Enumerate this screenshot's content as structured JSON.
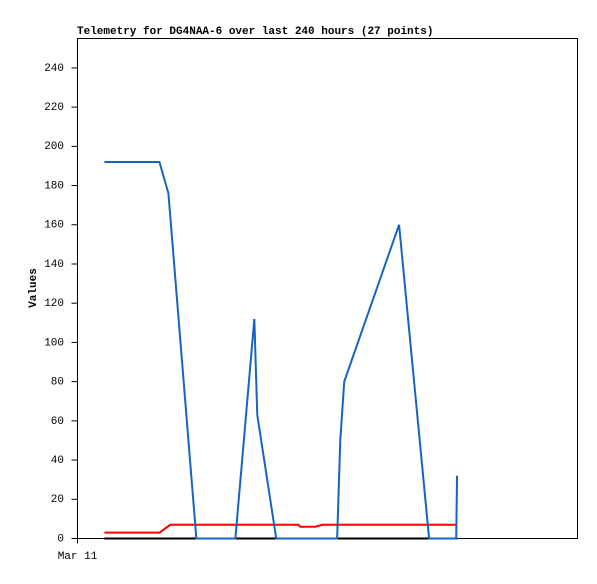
{
  "chart_data": {
    "type": "line",
    "title": "Telemetry for DG4NAA-6 over last 240 hours (27 points)",
    "y_label": "Values",
    "xlim": [
      0,
      240
    ],
    "xticks": [
      {
        "value": 0,
        "label": "Mar 11"
      }
    ],
    "ylim": [
      0,
      255
    ],
    "yticks": [
      0,
      20,
      40,
      60,
      80,
      100,
      120,
      140,
      160,
      180,
      200,
      220,
      240
    ],
    "grid": false,
    "series": [
      {
        "color": "#000000",
        "x": [
          12.9,
          182.0
        ],
        "values": [
          0,
          0
        ]
      },
      {
        "color": "#ff0000",
        "x": [
          12.9,
          39.3,
          44.5,
          105.9,
          106.8,
          114.0,
          117.4,
          182.0
        ],
        "values": [
          3,
          3,
          7,
          7,
          6,
          6,
          7,
          7
        ]
      },
      {
        "color": "#1565c0",
        "x": [
          12.9,
          39.3,
          43.6,
          57.0,
          75.7,
          84.8,
          86.2,
          95.3,
          124.5,
          126.0,
          127.9,
          154.2,
          168.6,
          181.6,
          182.0
        ],
        "values": [
          192,
          192,
          176,
          0,
          0,
          112,
          63,
          0,
          0,
          50,
          80,
          160,
          0,
          0,
          32
        ]
      }
    ]
  }
}
